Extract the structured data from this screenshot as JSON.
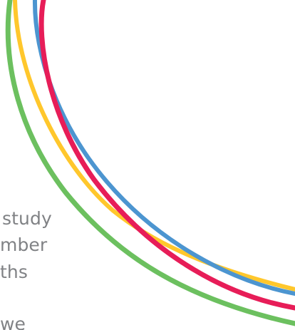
{
  "text_lines": [
    "study",
    "mber",
    "ths",
    "we"
  ],
  "colors": {
    "background": "#ffffff",
    "text": "#808285",
    "green": "#6cc05f",
    "yellow": "#ffc72c",
    "blue": "#4c95d0",
    "red": "#e71d58"
  }
}
